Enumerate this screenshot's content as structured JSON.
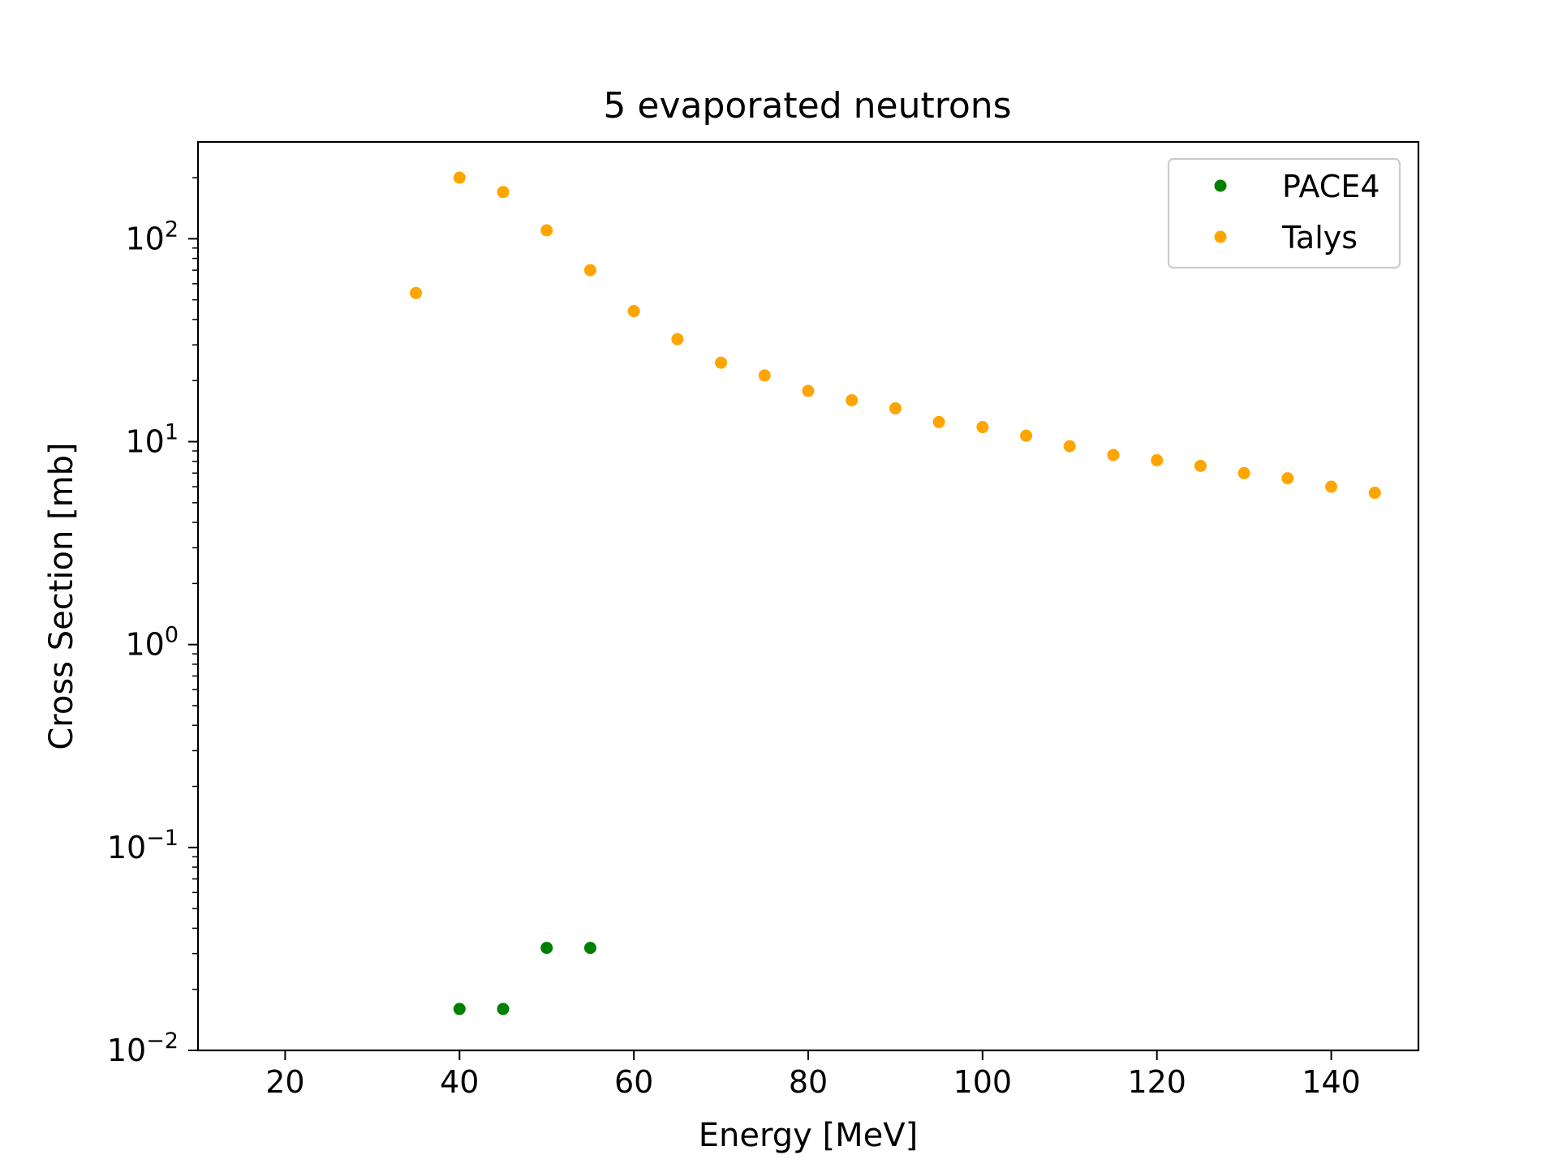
{
  "chart_data": {
    "type": "scatter",
    "title": "5 evaporated neutrons",
    "xlabel": "Energy [MeV]",
    "ylabel": "Cross Section [mb]",
    "xscale": "linear",
    "yscale": "log",
    "xlim": [
      10,
      150
    ],
    "ylim": [
      0.01,
      300
    ],
    "xticks": [
      20,
      40,
      60,
      80,
      100,
      120,
      140
    ],
    "xtick_labels": [
      "20",
      "40",
      "60",
      "80",
      "100",
      "120",
      "140"
    ],
    "yticks": [
      {
        "value": 0.01,
        "base": "10",
        "exp": "−2"
      },
      {
        "value": 0.1,
        "base": "10",
        "exp": "−1"
      },
      {
        "value": 1,
        "base": "10",
        "exp": "0"
      },
      {
        "value": 10,
        "base": "10",
        "exp": "1"
      },
      {
        "value": 100,
        "base": "10",
        "exp": "2"
      }
    ],
    "grid": false,
    "legend_position": "upper-right",
    "series": [
      {
        "name": "PACE4",
        "color": "#008000",
        "x": [
          40,
          45,
          50,
          55
        ],
        "y": [
          0.016,
          0.016,
          0.032,
          0.032
        ]
      },
      {
        "name": "Talys",
        "color": "#ffa500",
        "x": [
          35,
          40,
          45,
          50,
          55,
          60,
          65,
          70,
          75,
          80,
          85,
          90,
          95,
          100,
          105,
          110,
          115,
          120,
          125,
          130,
          135,
          140,
          145
        ],
        "y": [
          54,
          200,
          170,
          110,
          70,
          44,
          32,
          24.5,
          21.2,
          17.8,
          16,
          14.6,
          12.5,
          11.8,
          10.7,
          9.5,
          8.6,
          8.1,
          7.6,
          7.0,
          6.6,
          6.0,
          5.6
        ]
      }
    ]
  }
}
